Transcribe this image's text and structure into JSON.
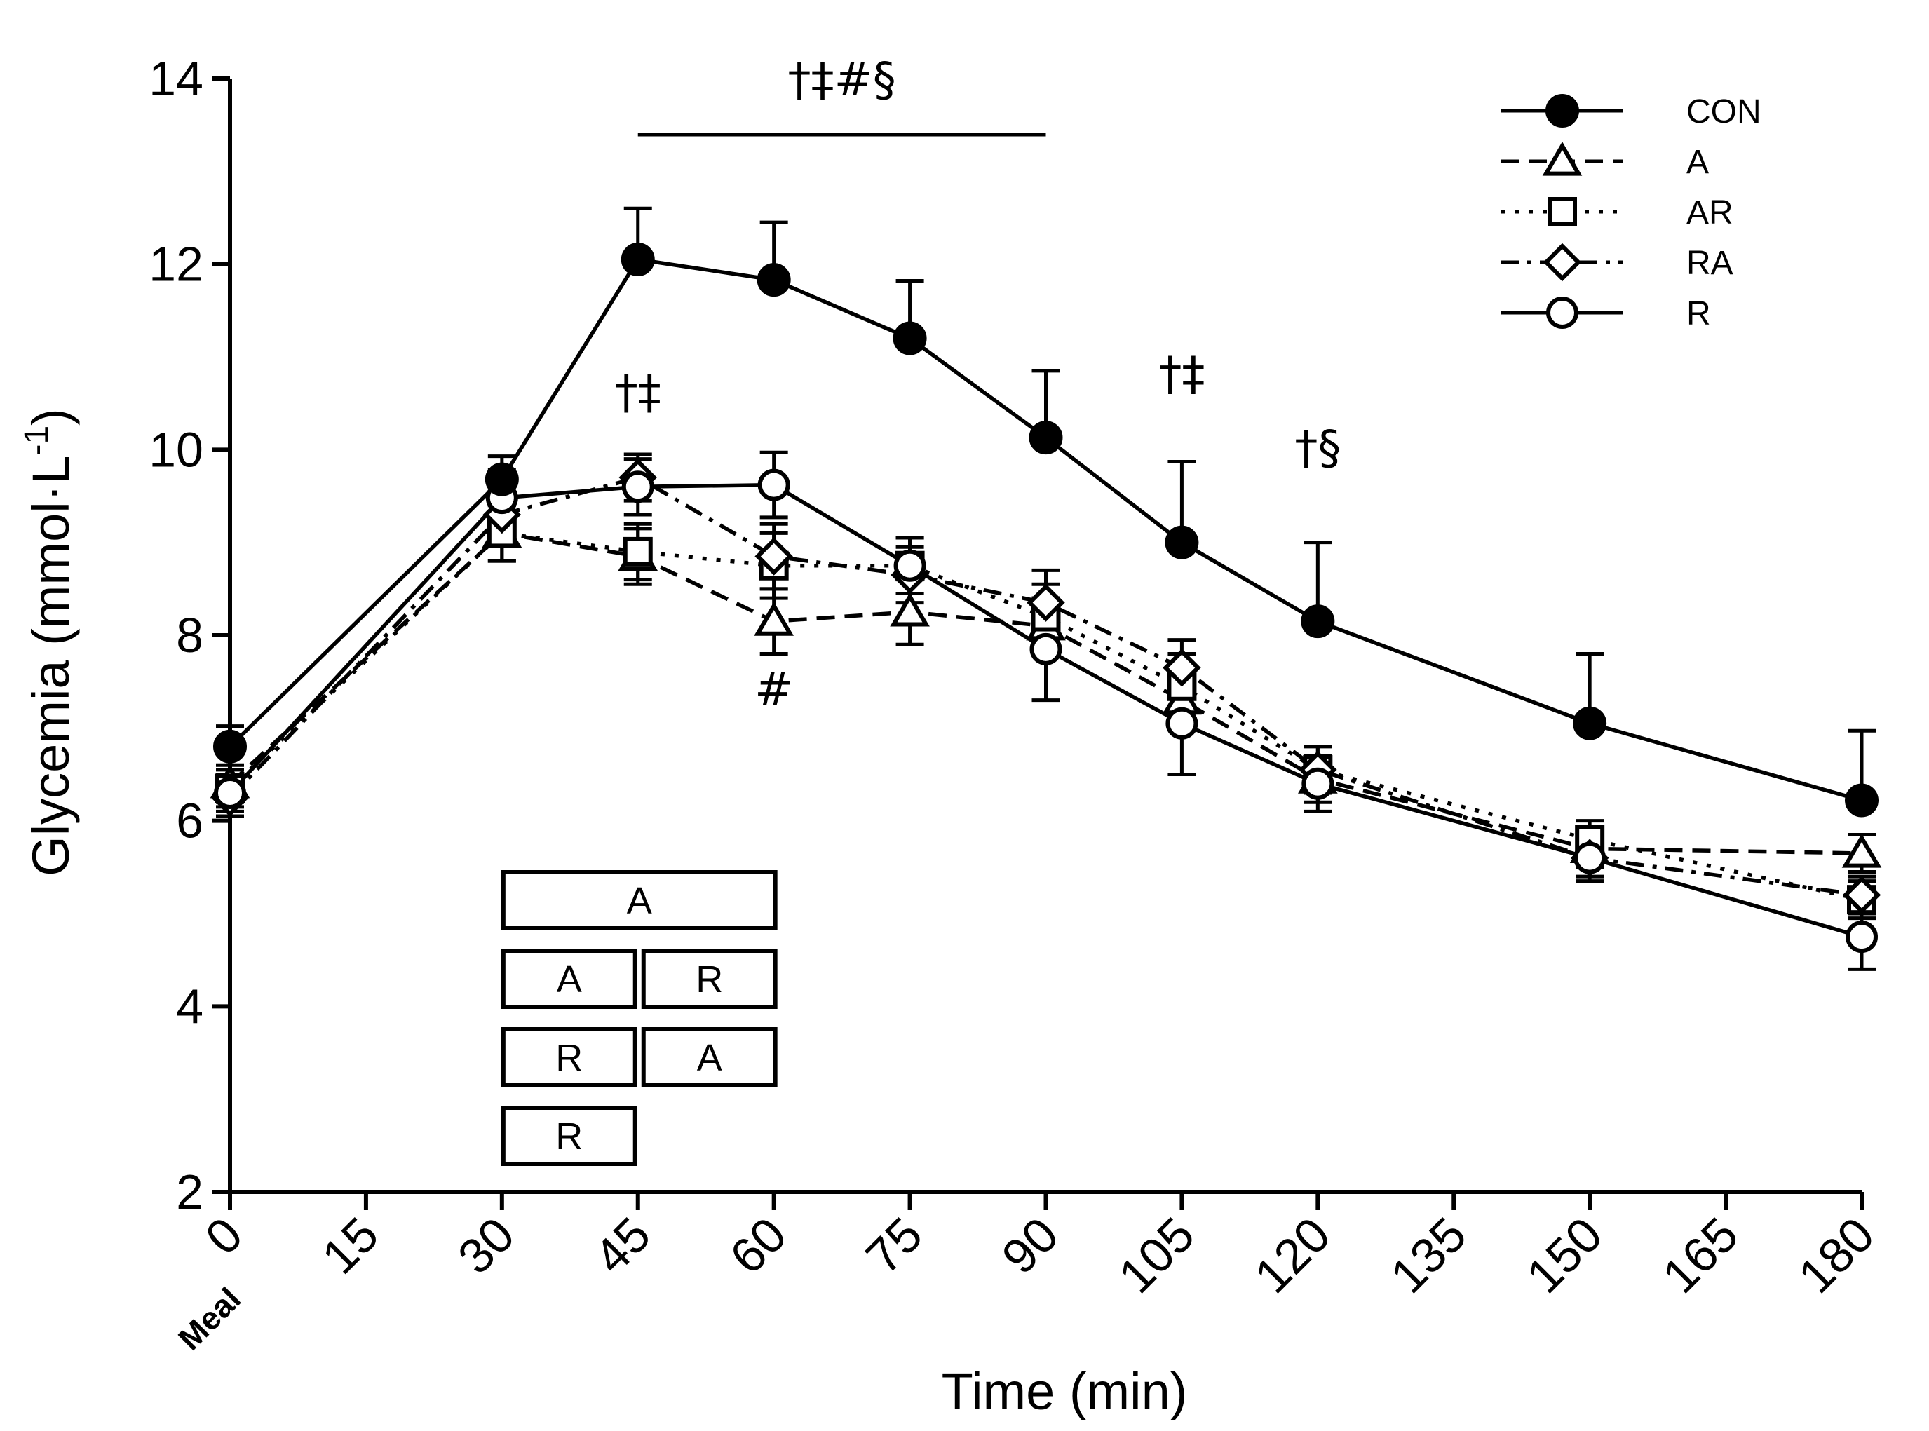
{
  "chart_data": {
    "type": "line",
    "xlabel": "Time (min)",
    "ylabel": "Glycemia (mmol·L",
    "ylabel_sup": "-1",
    "ylabel_end": ")",
    "xlim": [
      0,
      180
    ],
    "ylim": [
      2,
      14
    ],
    "x_ticks": [
      0,
      15,
      30,
      45,
      60,
      75,
      90,
      105,
      120,
      135,
      150,
      165,
      180
    ],
    "y_ticks": [
      2,
      4,
      6,
      8,
      10,
      12,
      14
    ],
    "x_tick_labels": [
      "0",
      "15",
      "30",
      "45",
      "60",
      "75",
      "90",
      "105",
      "120",
      "135",
      "150",
      "165",
      "180"
    ],
    "y_tick_labels": [
      "2",
      "4",
      "6",
      "8",
      "10",
      "12",
      "14"
    ],
    "meal_label": "Meal",
    "legend_position": "top-right",
    "series": [
      {
        "name": "CON",
        "marker": "circle-filled",
        "line": "solid",
        "x": [
          0,
          30,
          45,
          60,
          75,
          90,
          105,
          120,
          150,
          180
        ],
        "y": [
          6.8,
          9.68,
          12.05,
          11.83,
          11.2,
          10.13,
          9.0,
          8.15,
          7.05,
          6.22
        ],
        "err": [
          0.22,
          0.25,
          0.55,
          0.62,
          0.62,
          0.72,
          0.87,
          0.85,
          0.75,
          0.75
        ]
      },
      {
        "name": "A",
        "marker": "triangle-open",
        "line": "dashed",
        "x": [
          0,
          30,
          45,
          60,
          75,
          90,
          105,
          120,
          150,
          180
        ],
        "y": [
          6.4,
          9.1,
          8.85,
          8.15,
          8.25,
          8.1,
          7.3,
          6.45,
          5.7,
          5.65
        ],
        "err": [
          0.2,
          0.3,
          0.3,
          0.35,
          0.35,
          0.3,
          0.3,
          0.25,
          0.2,
          0.2
        ]
      },
      {
        "name": "AR",
        "marker": "square-open",
        "line": "dotted",
        "x": [
          0,
          30,
          45,
          60,
          75,
          90,
          105,
          120,
          150,
          180
        ],
        "y": [
          6.35,
          9.1,
          8.9,
          8.75,
          8.75,
          8.2,
          7.45,
          6.55,
          5.8,
          5.15
        ],
        "err": [
          0.2,
          0.3,
          0.3,
          0.35,
          0.3,
          0.35,
          0.35,
          0.25,
          0.2,
          0.2
        ]
      },
      {
        "name": "RA",
        "marker": "diamond-open",
        "line": "dashdot",
        "x": [
          0,
          30,
          45,
          60,
          75,
          90,
          105,
          120,
          150,
          180
        ],
        "y": [
          6.25,
          9.3,
          9.7,
          8.85,
          8.65,
          8.35,
          7.65,
          6.55,
          5.6,
          5.2
        ],
        "err": [
          0.2,
          0.3,
          0.25,
          0.35,
          0.3,
          0.35,
          0.3,
          0.25,
          0.2,
          0.2
        ]
      },
      {
        "name": "R",
        "marker": "circle-open",
        "line": "solid",
        "x": [
          0,
          30,
          45,
          60,
          75,
          90,
          105,
          120,
          150,
          180
        ],
        "y": [
          6.3,
          9.48,
          9.6,
          9.62,
          8.75,
          7.85,
          7.05,
          6.4,
          5.6,
          4.75
        ],
        "err": [
          0.2,
          0.3,
          0.3,
          0.35,
          0.3,
          0.55,
          0.55,
          0.3,
          0.25,
          0.35
        ]
      }
    ],
    "significance_bar": {
      "x_start": 45,
      "x_end": 90,
      "label": "†‡#§"
    },
    "annotations": [
      {
        "text": "†‡",
        "x": 45,
        "y": 10.45
      },
      {
        "text": "#",
        "x": 60,
        "y": 7.25
      },
      {
        "text": "†‡",
        "x": 105,
        "y": 10.65
      },
      {
        "text": "†§",
        "x": 120,
        "y": 9.85
      }
    ],
    "protocol_boxes": [
      {
        "label": "A",
        "x_start": 30,
        "x_end": 60,
        "row": 0
      },
      {
        "label": "A",
        "x_start": 30,
        "x_end": 45,
        "row": 1
      },
      {
        "label": "R",
        "x_start": 45,
        "x_end": 60,
        "row": 1
      },
      {
        "label": "R",
        "x_start": 30,
        "x_end": 45,
        "row": 2
      },
      {
        "label": "A",
        "x_start": 45,
        "x_end": 60,
        "row": 2
      },
      {
        "label": "R",
        "x_start": 30,
        "x_end": 45,
        "row": 3
      }
    ]
  }
}
